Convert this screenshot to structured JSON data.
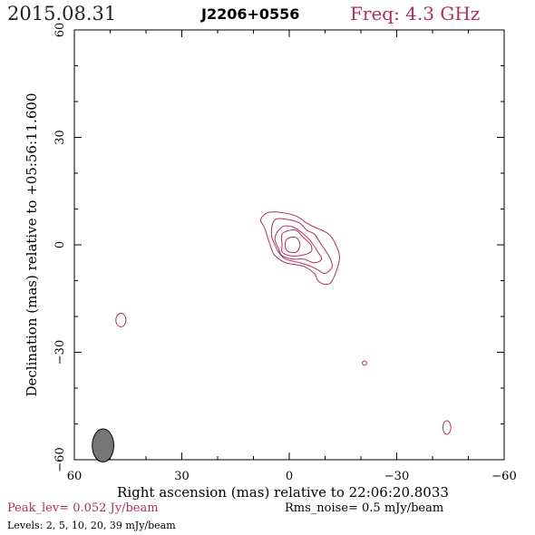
{
  "header": {
    "date": "2015.08.31",
    "source": "J2206+0556",
    "freq": "Freq: 4.3 GHz"
  },
  "footer": {
    "peak": "Peak_lev=  0.052 Jy/beam",
    "rms": "Rms_noise=   0.5 mJy/beam",
    "levels": "Levels:   2,    5,   10,   20,   39 mJy/beam"
  },
  "chart_data": {
    "type": "contour",
    "xlabel": "Right ascension (mas) relative to 22:06:20.8033",
    "ylabel": "Declination (mas) relative to +05:56:11.600",
    "xlim": [
      60,
      -60
    ],
    "ylim": [
      -60,
      60
    ],
    "xticks": [
      60,
      30,
      0,
      -30,
      -60
    ],
    "yticks": [
      60,
      30,
      0,
      -30,
      -60
    ],
    "x_tick_labels": [
      "60",
      "30",
      "0",
      "−30",
      "−60"
    ],
    "y_tick_labels": [
      "60",
      "30",
      "0",
      "−30",
      "−60"
    ],
    "contour_levels_mjy": [
      2,
      5,
      10,
      20,
      39
    ],
    "contour_color": "#b0305a",
    "beam": {
      "x": 52,
      "y": -56,
      "major": 4.6,
      "minor": 3.0,
      "pa_deg": 0,
      "color": "#777777"
    },
    "main_component": [
      {
        "level": 2,
        "points": [
          [
            6,
            9
          ],
          [
            2,
            9
          ],
          [
            -2,
            8
          ],
          [
            -5,
            6
          ],
          [
            -7,
            5
          ],
          [
            -11,
            3
          ],
          [
            -13,
            0
          ],
          [
            -14,
            -4
          ],
          [
            -12,
            -10
          ],
          [
            -10,
            -11
          ],
          [
            -8,
            -10
          ],
          [
            -7,
            -8
          ],
          [
            -4,
            -6
          ],
          [
            1,
            -5
          ],
          [
            4,
            -3
          ],
          [
            5,
            -1
          ],
          [
            6,
            2
          ],
          [
            7,
            5
          ],
          [
            8,
            7
          ]
        ]
      },
      {
        "level": 5,
        "points": [
          [
            4,
            7
          ],
          [
            0,
            7
          ],
          [
            -3,
            6
          ],
          [
            -5,
            4
          ],
          [
            -7,
            3
          ],
          [
            -9,
            0
          ],
          [
            -11,
            -3
          ],
          [
            -12,
            -6
          ],
          [
            -10,
            -8
          ],
          [
            -8,
            -7
          ],
          [
            -6,
            -6
          ],
          [
            -3,
            -5
          ],
          [
            1,
            -4
          ],
          [
            3,
            -2
          ],
          [
            4,
            0
          ],
          [
            5,
            3
          ]
        ]
      },
      {
        "level": 10,
        "points": [
          [
            2,
            5
          ],
          [
            -1,
            5
          ],
          [
            -4,
            3
          ],
          [
            -6,
            1
          ],
          [
            -8,
            -2
          ],
          [
            -9,
            -4
          ],
          [
            -7,
            -5
          ],
          [
            -4,
            -4
          ],
          [
            -1,
            -4
          ],
          [
            2,
            -3
          ],
          [
            3,
            -1
          ],
          [
            4,
            2
          ]
        ]
      },
      {
        "level": 20,
        "points": [
          [
            0,
            4
          ],
          [
            -2,
            4
          ],
          [
            -4,
            2
          ],
          [
            -6,
            0
          ],
          [
            -6,
            -2
          ],
          [
            -3,
            -3
          ],
          [
            0,
            -3
          ],
          [
            2,
            -2
          ],
          [
            2,
            0
          ],
          [
            2,
            3
          ]
        ]
      },
      {
        "level": 39,
        "points": [
          [
            0,
            2
          ],
          [
            -2,
            2
          ],
          [
            -3,
            0
          ],
          [
            -2,
            -2
          ],
          [
            0,
            -2
          ],
          [
            1,
            -1
          ],
          [
            1,
            1
          ]
        ]
      }
    ],
    "islands": [
      {
        "level": 2,
        "x": 47,
        "y": -21,
        "rx": 1.4,
        "ry": 1.9
      },
      {
        "level": 2,
        "x": -21,
        "y": -33,
        "rx": 0.6,
        "ry": 0.6
      },
      {
        "level": 2,
        "x": -44,
        "y": -51,
        "rx": 1.1,
        "ry": 1.9
      }
    ]
  }
}
